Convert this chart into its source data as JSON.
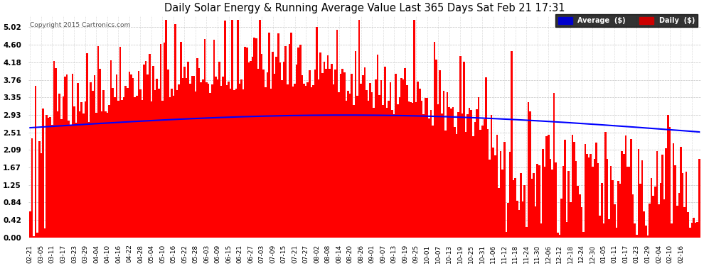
{
  "title": "Daily Solar Energy & Running Average Value Last 365 Days Sat Feb 21 17:31",
  "copyright": "Copyright 2015 Cartronics.com",
  "bar_color": "#ff0000",
  "avg_color": "#0000ff",
  "bg_color": "#ffffff",
  "plot_bg_color": "#ffffff",
  "grid_color": "#aaaaaa",
  "yticks": [
    0.0,
    0.42,
    0.84,
    1.25,
    1.67,
    2.09,
    2.51,
    2.93,
    3.35,
    3.76,
    4.18,
    4.6,
    5.02
  ],
  "ylim": [
    0.0,
    5.3
  ],
  "legend_avg_label": "Average  ($)",
  "legend_daily_label": "Daily  ($)",
  "legend_avg_color": "#0000cc",
  "legend_daily_color": "#cc0000",
  "x_labels": [
    "02-21",
    "03-05",
    "03-11",
    "03-17",
    "03-23",
    "03-29",
    "04-04",
    "04-10",
    "04-16",
    "04-22",
    "04-28",
    "05-04",
    "05-10",
    "05-16",
    "05-22",
    "05-28",
    "06-03",
    "06-09",
    "06-15",
    "06-21",
    "06-27",
    "07-03",
    "07-09",
    "07-15",
    "07-21",
    "07-27",
    "08-02",
    "08-08",
    "08-14",
    "08-20",
    "08-26",
    "09-01",
    "09-07",
    "09-13",
    "09-19",
    "09-25",
    "10-01",
    "10-07",
    "10-13",
    "10-19",
    "10-25",
    "10-31",
    "11-06",
    "11-12",
    "11-18",
    "11-24",
    "11-30",
    "12-06",
    "12-12",
    "12-18",
    "12-24",
    "12-30",
    "01-05",
    "01-11",
    "01-17",
    "01-23",
    "01-29",
    "02-04",
    "02-10",
    "02-16"
  ],
  "x_label_step": 6
}
